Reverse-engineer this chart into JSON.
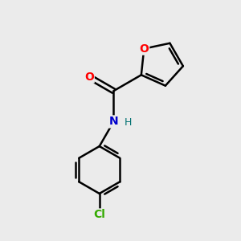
{
  "background_color": "#ebebeb",
  "bond_color": "#000000",
  "O_color": "#ff0000",
  "N_color": "#0000cc",
  "Cl_color": "#33aa00",
  "H_color": "#007070",
  "line_width": 1.8,
  "figsize": [
    3.0,
    3.0
  ],
  "dpi": 100,
  "xlim": [
    0,
    10
  ],
  "ylim": [
    0,
    10
  ]
}
